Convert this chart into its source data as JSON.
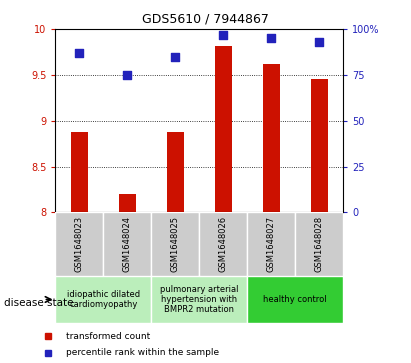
{
  "title": "GDS5610 / 7944867",
  "samples": [
    "GSM1648023",
    "GSM1648024",
    "GSM1648025",
    "GSM1648026",
    "GSM1648027",
    "GSM1648028"
  ],
  "transformed_counts": [
    8.88,
    8.2,
    8.88,
    9.82,
    9.62,
    9.45
  ],
  "percentile_ranks": [
    87,
    75,
    85,
    97,
    95,
    93
  ],
  "ylim_left": [
    8.0,
    10.0
  ],
  "ylim_right": [
    0,
    100
  ],
  "yticks_left": [
    8.0,
    8.5,
    9.0,
    9.5,
    10.0
  ],
  "yticks_right": [
    0,
    25,
    50,
    75,
    100
  ],
  "bar_color": "#CC1100",
  "dot_color": "#2222BB",
  "bg_color": "#ffffff",
  "sample_box_color": "#cccccc",
  "disease_groups": [
    {
      "label": "idiopathic dilated\ncardiomyopathy",
      "start": 0,
      "end": 1,
      "color": "#bbeebb"
    },
    {
      "label": "pulmonary arterial\nhypertension with\nBMPR2 mutation",
      "start": 2,
      "end": 3,
      "color": "#bbeebb"
    },
    {
      "label": "healthy control",
      "start": 4,
      "end": 5,
      "color": "#33cc33"
    }
  ],
  "legend_red_label": "transformed count",
  "legend_blue_label": "percentile rank within the sample",
  "disease_state_label": "disease state",
  "tick_label_color_left": "#CC1100",
  "tick_label_color_right": "#2222BB",
  "bar_width": 0.35,
  "dot_size": 30,
  "title_fontsize": 9,
  "tick_fontsize": 7,
  "sample_fontsize": 6,
  "legend_fontsize": 6.5,
  "disease_fontsize": 6,
  "disease_state_fontsize": 7.5
}
